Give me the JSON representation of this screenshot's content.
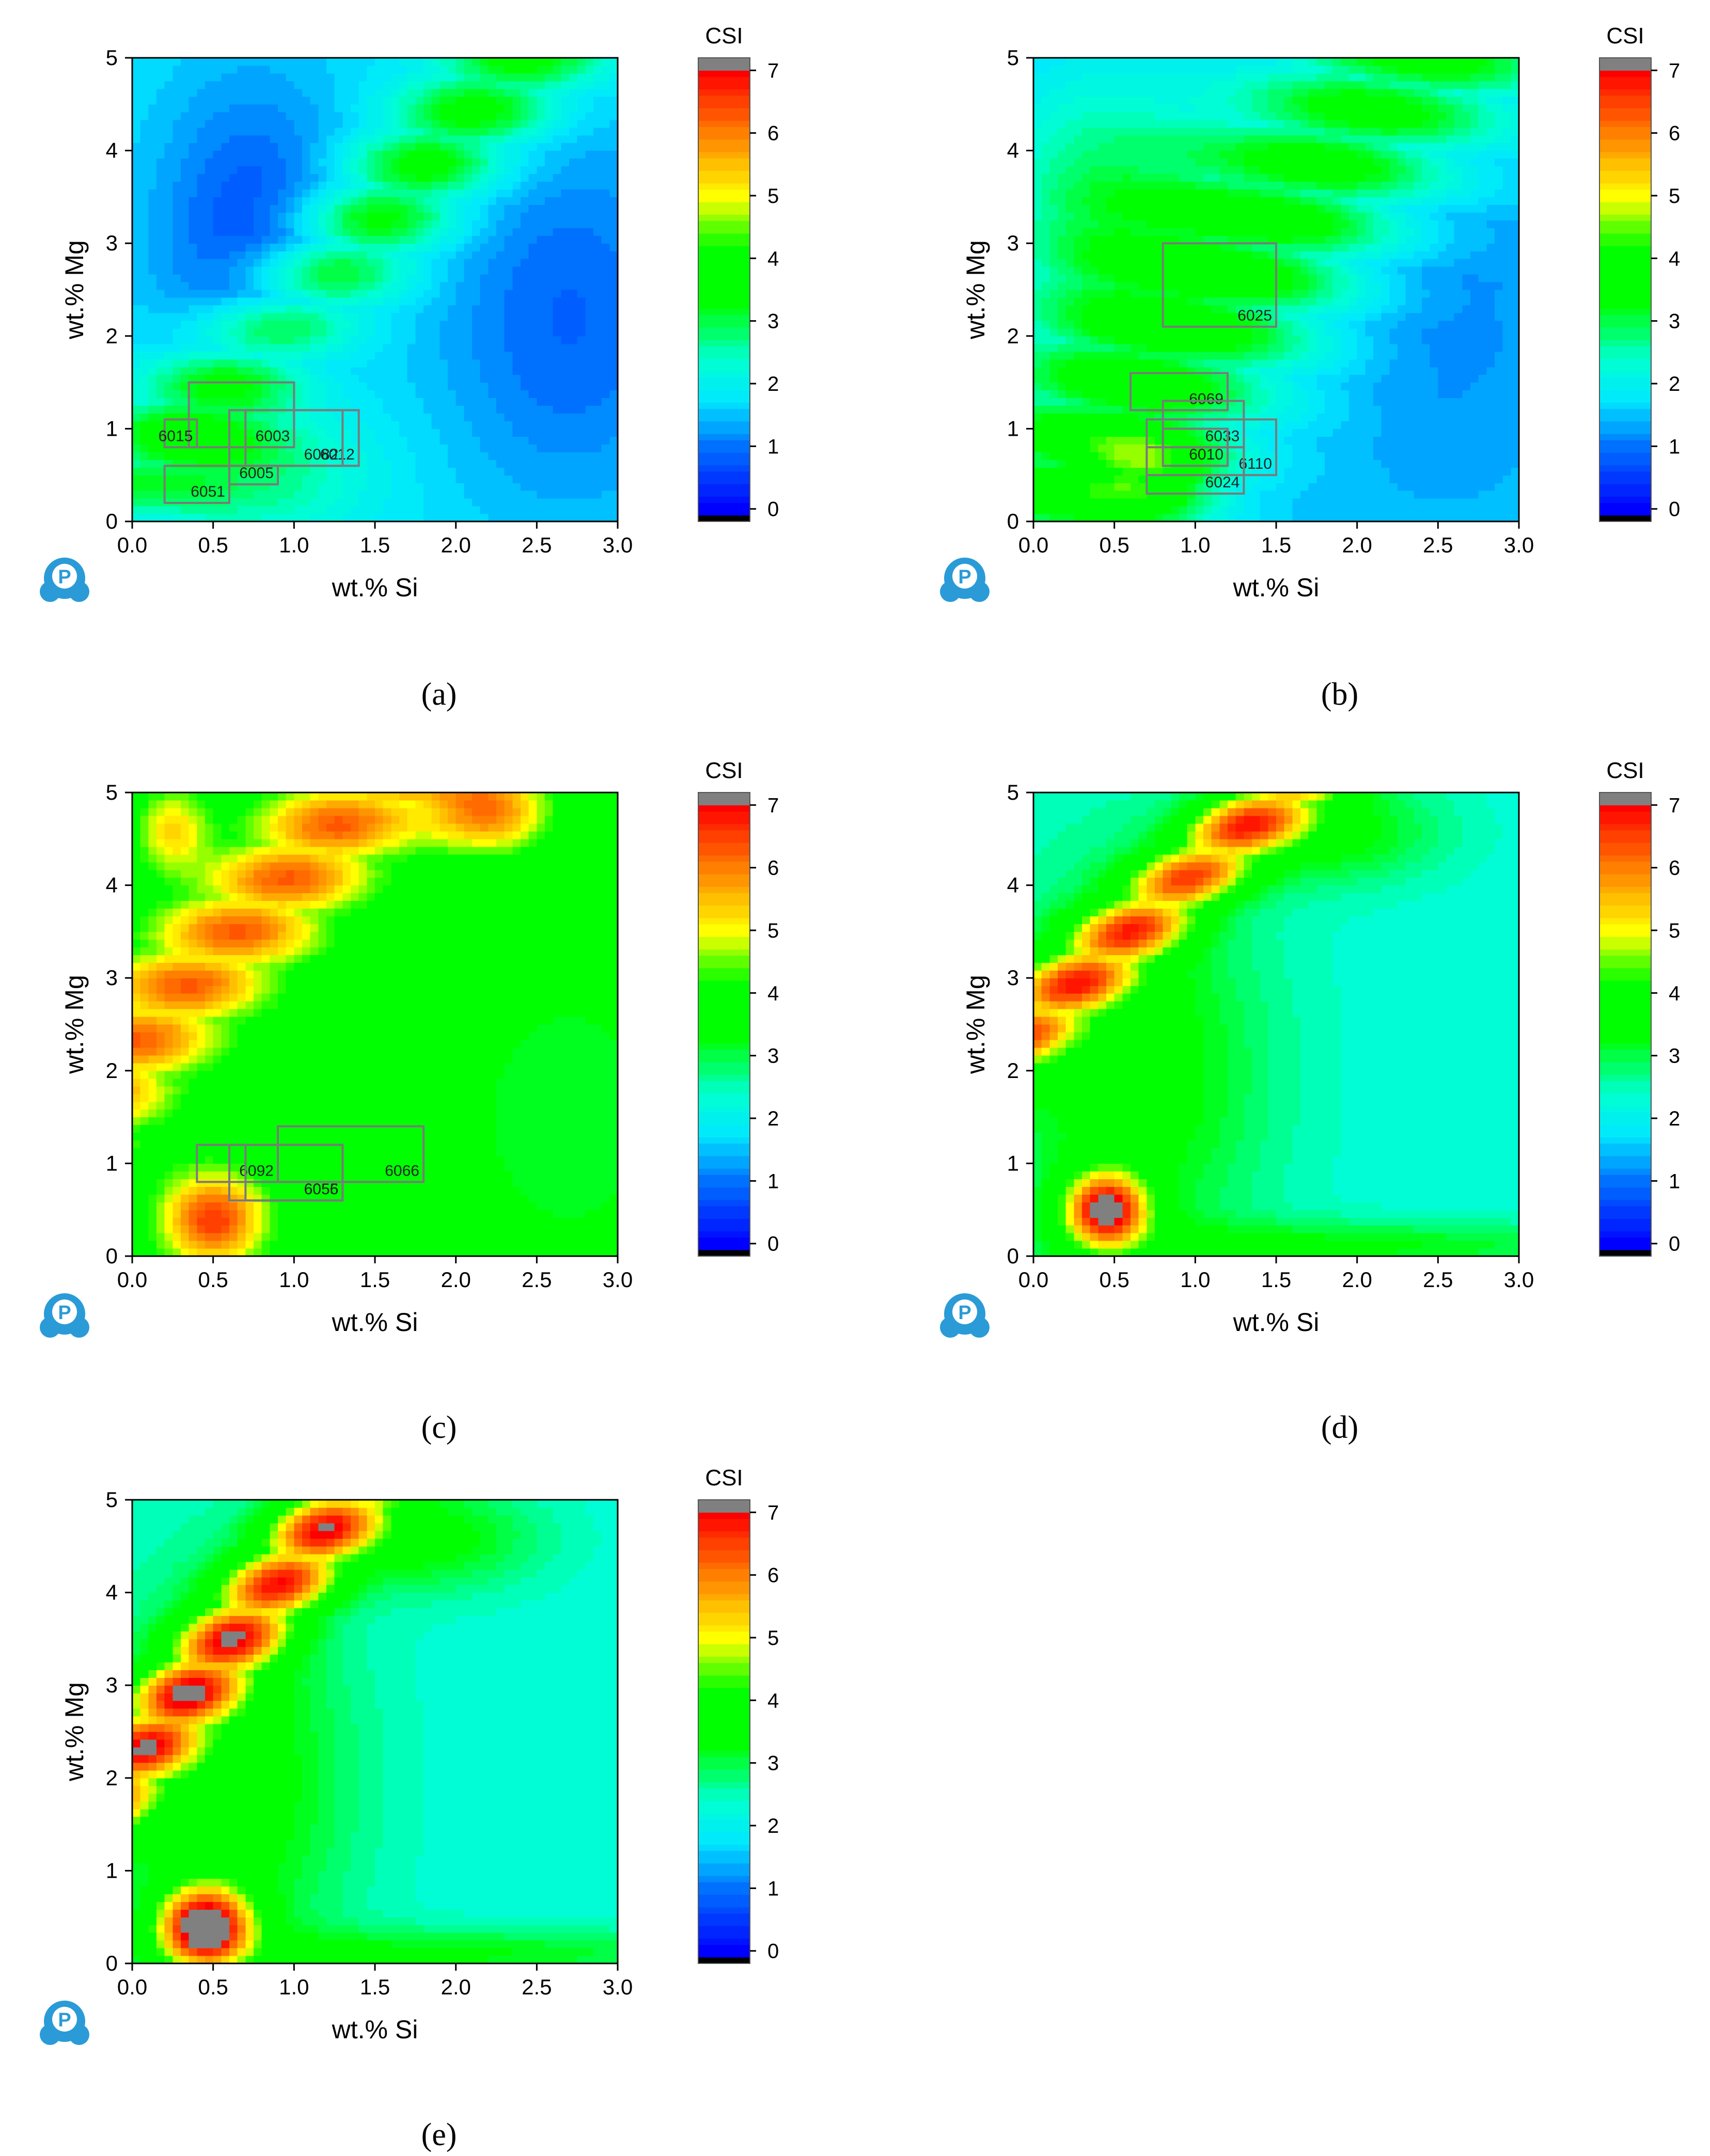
{
  "figure": {
    "colorbar": {
      "title": "CSI",
      "ticks": [
        0,
        1,
        2,
        3,
        4,
        5,
        6,
        7
      ],
      "range": [
        -0.2,
        7.2
      ],
      "overflow_color": "#808080",
      "underflow_color": "#000000",
      "stops": [
        {
          "v": 0.0,
          "color": "#0000ff"
        },
        {
          "v": 1.0,
          "color": "#0070ff"
        },
        {
          "v": 1.75,
          "color": "#00e8ff"
        },
        {
          "v": 2.4,
          "color": "#00ffd0"
        },
        {
          "v": 3.3,
          "color": "#00ff00"
        },
        {
          "v": 4.2,
          "color": "#00ff00"
        },
        {
          "v": 5.0,
          "color": "#ffff00"
        },
        {
          "v": 6.0,
          "color": "#ff8000"
        },
        {
          "v": 7.0,
          "color": "#ff0000"
        }
      ]
    },
    "publisher_icon_letter": "P"
  },
  "chart_data": [
    {
      "panel": "a",
      "caption": "(a)",
      "type": "heatmap",
      "xlabel": "wt.% Si",
      "ylabel": "wt.% Mg",
      "xlim": [
        0,
        3
      ],
      "ylim": [
        0,
        5
      ],
      "xticks": [
        "0.0",
        "0.5",
        "1.0",
        "1.5",
        "2.0",
        "2.5",
        "3.0"
      ],
      "yticks": [
        "0",
        "1",
        "2",
        "3",
        "4",
        "5"
      ],
      "field": {
        "base": 1.8,
        "ridge": {
          "offset": 0.4,
          "slope": 1.9,
          "amp": 1.9,
          "width": 0.33
        },
        "blobs": [
          {
            "x": 0.75,
            "y": 3.0,
            "amp": -1.1,
            "sx": 0.45,
            "sy": 1.3
          },
          {
            "x": 2.7,
            "y": 2.2,
            "amp": -0.9,
            "sx": 0.6,
            "sy": 1.5
          },
          {
            "x": 0.0,
            "y": 0.0,
            "amp": -0.9,
            "sx": 0.25,
            "sy": 0.5
          },
          {
            "x": 0.8,
            "y": 0.6,
            "amp": 1.1,
            "sx": 0.45,
            "sy": 0.55
          }
        ]
      },
      "alloy_boxes": [
        {
          "name": "6003",
          "si": [
            0.35,
            1.0
          ],
          "mg": [
            0.8,
            1.5
          ]
        },
        {
          "name": "6015",
          "si": [
            0.2,
            0.4
          ],
          "mg": [
            0.8,
            1.1
          ]
        },
        {
          "name": "6012",
          "si": [
            0.6,
            1.4
          ],
          "mg": [
            0.6,
            1.2
          ]
        },
        {
          "name": "6082",
          "si": [
            0.7,
            1.3
          ],
          "mg": [
            0.6,
            1.2
          ]
        },
        {
          "name": "6051",
          "si": [
            0.2,
            0.6
          ],
          "mg": [
            0.2,
            0.6
          ]
        },
        {
          "name": "6005",
          "si": [
            0.6,
            0.9
          ],
          "mg": [
            0.4,
            0.6
          ]
        }
      ]
    },
    {
      "panel": "b",
      "caption": "(b)",
      "type": "heatmap",
      "xlabel": "wt.% Si",
      "ylabel": "wt.% Mg",
      "xlim": [
        0,
        3
      ],
      "ylim": [
        0,
        5
      ],
      "xticks": [
        "0.0",
        "0.5",
        "1.0",
        "1.5",
        "2.0",
        "2.5",
        "3.0"
      ],
      "yticks": [
        "0",
        "1",
        "2",
        "3",
        "4",
        "5"
      ],
      "field": {
        "base": 1.5,
        "ridge": {
          "offset": 0.2,
          "slope": 2.0,
          "amp": 2.2,
          "width": 0.6
        },
        "blobs": [
          {
            "x": 0.7,
            "y": 0.5,
            "amp": 1.8,
            "sx": 0.3,
            "sy": 0.35
          },
          {
            "x": 0.4,
            "y": 3.5,
            "amp": 1.3,
            "sx": 0.5,
            "sy": 1.0
          },
          {
            "x": 2.5,
            "y": 2.5,
            "amp": -0.4,
            "sx": 0.5,
            "sy": 1.3
          }
        ]
      },
      "alloy_boxes": [
        {
          "name": "6025",
          "si": [
            0.8,
            1.5
          ],
          "mg": [
            2.1,
            3.0
          ]
        },
        {
          "name": "6069",
          "si": [
            0.6,
            1.2
          ],
          "mg": [
            1.2,
            1.6
          ]
        },
        {
          "name": "6033",
          "si": [
            0.8,
            1.3
          ],
          "mg": [
            0.8,
            1.3
          ]
        },
        {
          "name": "6010",
          "si": [
            0.8,
            1.2
          ],
          "mg": [
            0.6,
            1.0
          ]
        },
        {
          "name": "6110",
          "si": [
            0.7,
            1.5
          ],
          "mg": [
            0.5,
            1.1
          ]
        },
        {
          "name": "6024",
          "si": [
            0.7,
            1.3
          ],
          "mg": [
            0.3,
            0.8
          ]
        }
      ]
    },
    {
      "panel": "c",
      "caption": "(c)",
      "type": "heatmap",
      "xlabel": "wt.% Si",
      "ylabel": "wt.% Mg",
      "xlim": [
        0,
        3
      ],
      "ylim": [
        0,
        5
      ],
      "xticks": [
        "0.0",
        "0.5",
        "1.0",
        "1.5",
        "2.0",
        "2.5",
        "3.0"
      ],
      "yticks": [
        "0",
        "1",
        "2",
        "3",
        "4",
        "5"
      ],
      "field": {
        "base": 3.7,
        "ridge": {
          "offset": 2.3,
          "slope": 1.85,
          "amp": 2.6,
          "width": 0.33
        },
        "blobs": [
          {
            "x": 0.5,
            "y": 0.4,
            "amp": 2.9,
            "sx": 0.22,
            "sy": 0.35
          },
          {
            "x": 0.25,
            "y": 4.6,
            "amp": 1.6,
            "sx": 0.15,
            "sy": 0.3
          },
          {
            "x": 2.2,
            "y": 4.8,
            "amp": 2.4,
            "sx": 0.25,
            "sy": 0.3
          },
          {
            "x": 2.7,
            "y": 1.5,
            "amp": -0.6,
            "sx": 0.6,
            "sy": 1.4
          }
        ]
      },
      "alloy_boxes": [
        {
          "name": "6092",
          "si": [
            0.4,
            0.9
          ],
          "mg": [
            0.8,
            1.2
          ]
        },
        {
          "name": "6055",
          "si": [
            0.6,
            1.3
          ],
          "mg": [
            0.6,
            1.2
          ]
        },
        {
          "name": "6066",
          "si": [
            0.9,
            1.8
          ],
          "mg": [
            0.8,
            1.4
          ]
        },
        {
          "name": "6056",
          "si": [
            0.7,
            1.3
          ],
          "mg": [
            0.6,
            1.2
          ]
        }
      ]
    },
    {
      "panel": "d",
      "caption": "(d)",
      "type": "heatmap",
      "xlabel": "wt.% Si",
      "ylabel": "wt.% Mg",
      "xlim": [
        0,
        3
      ],
      "ylim": [
        0,
        5
      ],
      "xticks": [
        "0.0",
        "0.5",
        "1.0",
        "1.5",
        "2.0",
        "2.5",
        "3.0"
      ],
      "yticks": [
        "0",
        "1",
        "2",
        "3",
        "4",
        "5"
      ],
      "field": {
        "base": 2.3,
        "ridge": {
          "offset": 2.55,
          "slope": 1.6,
          "amp": 3.7,
          "width": 0.22
        },
        "blobs": [
          {
            "x": 0.45,
            "y": 0.5,
            "amp": 4.5,
            "sx": 0.18,
            "sy": 0.28
          },
          {
            "x": 0.6,
            "y": 2.0,
            "amp": 1.3,
            "sx": 0.6,
            "sy": 1.6
          },
          {
            "x": 1.8,
            "y": 4.6,
            "amp": 1.2,
            "sx": 0.5,
            "sy": 0.4
          },
          {
            "x": 2.0,
            "y": 0.1,
            "amp": 1.0,
            "sx": 1.2,
            "sy": 0.2
          }
        ]
      },
      "alloy_boxes": []
    },
    {
      "panel": "e",
      "caption": "(e)",
      "type": "heatmap",
      "xlabel": "wt.% Si",
      "ylabel": "wt.% Mg",
      "xlim": [
        0,
        3
      ],
      "ylim": [
        0,
        5
      ],
      "xticks": [
        "0.0",
        "0.5",
        "1.0",
        "1.5",
        "2.0",
        "2.5",
        "3.0"
      ],
      "yticks": [
        "0",
        "1",
        "2",
        "3",
        "4",
        "5"
      ],
      "field": {
        "base": 2.3,
        "ridge": {
          "offset": 2.2,
          "slope": 2.1,
          "amp": 4.1,
          "width": 0.22
        },
        "blobs": [
          {
            "x": 0.45,
            "y": 0.4,
            "amp": 5.0,
            "sx": 0.2,
            "sy": 0.3
          },
          {
            "x": 0.6,
            "y": 2.0,
            "amp": 1.3,
            "sx": 0.55,
            "sy": 1.6
          },
          {
            "x": 1.8,
            "y": 4.6,
            "amp": 1.2,
            "sx": 0.5,
            "sy": 0.4
          },
          {
            "x": 2.0,
            "y": 0.1,
            "amp": 1.0,
            "sx": 1.2,
            "sy": 0.2
          }
        ]
      },
      "alloy_boxes": []
    }
  ]
}
